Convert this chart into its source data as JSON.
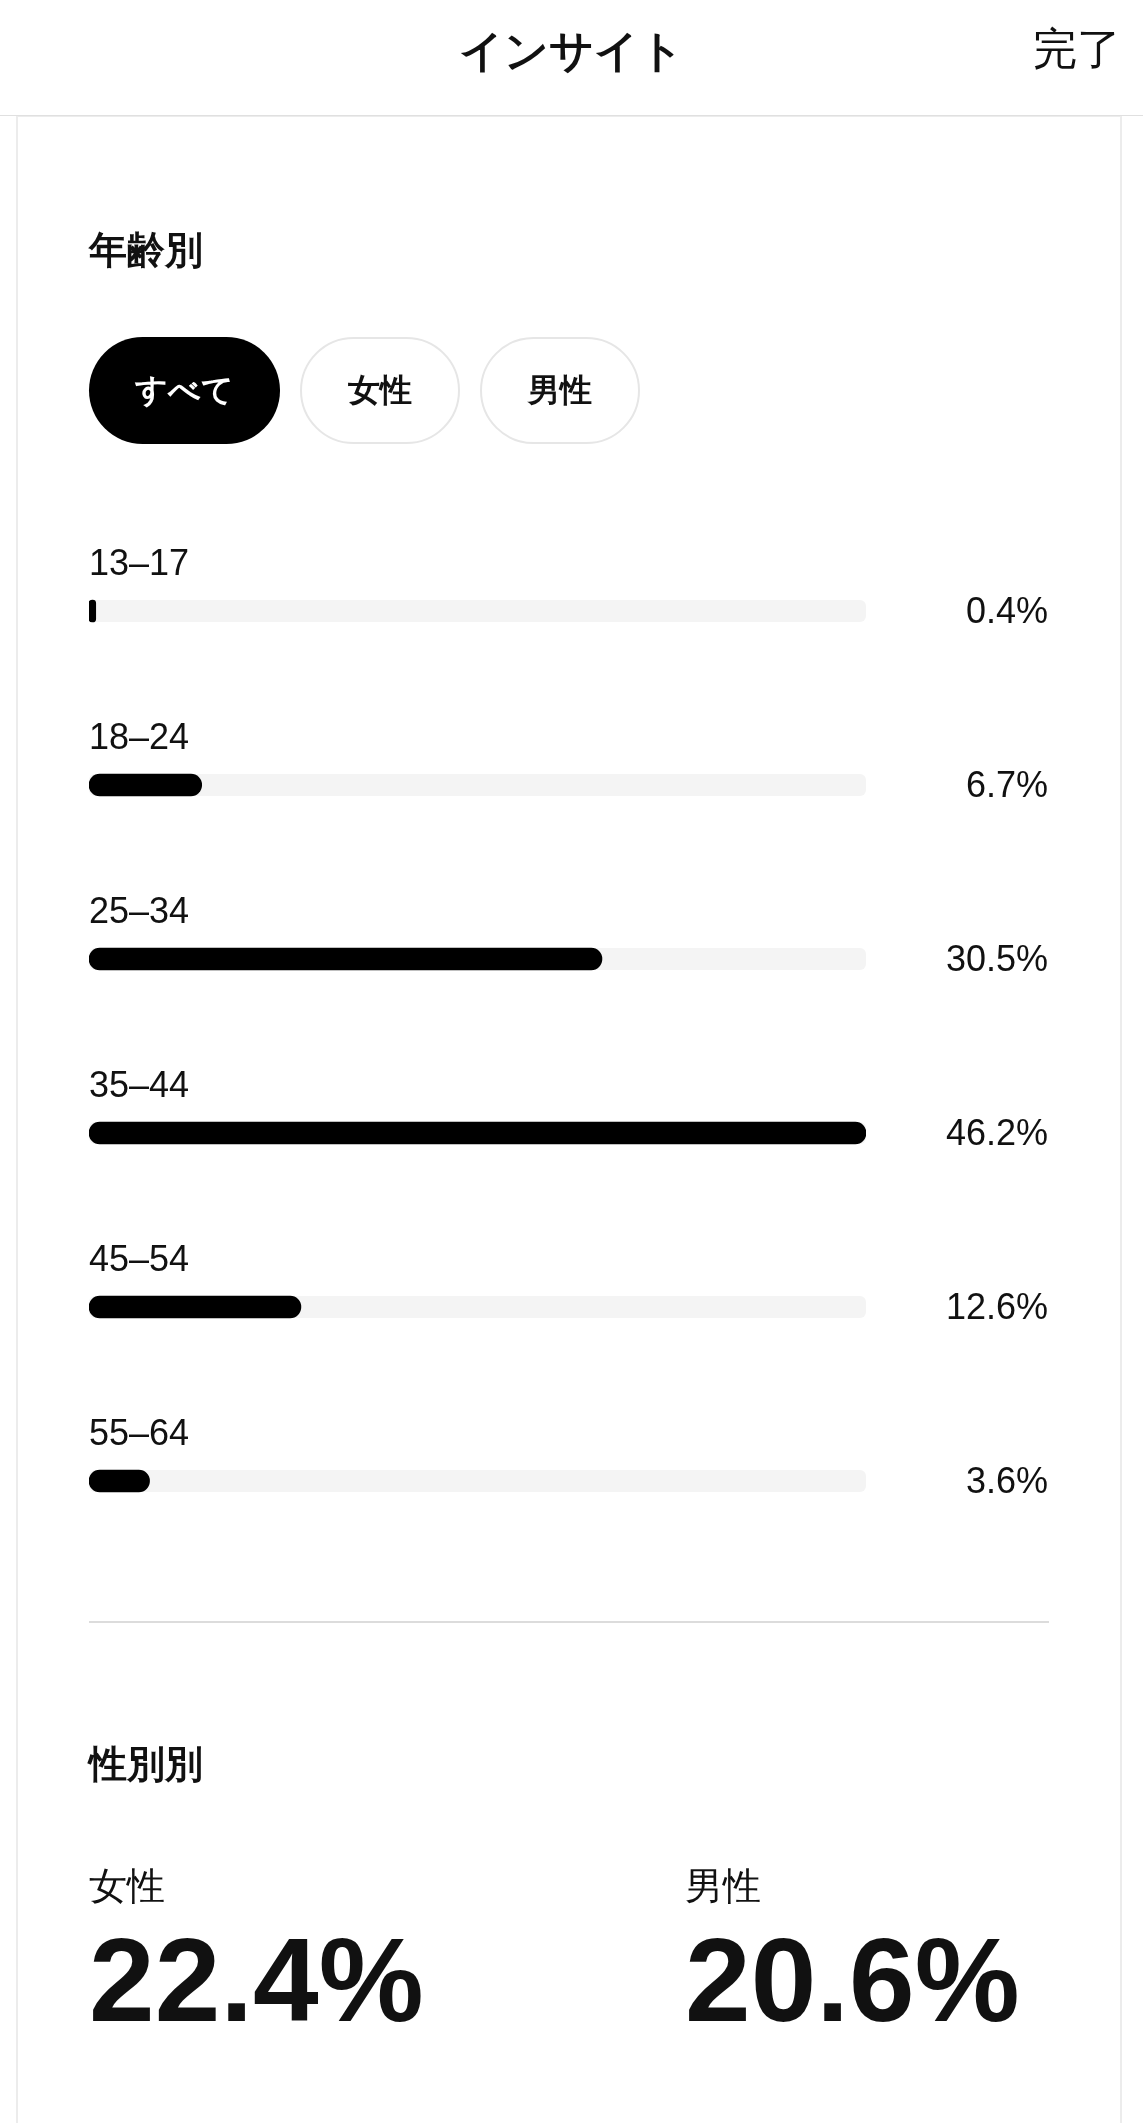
{
  "chart_data": [
    {
      "type": "bar",
      "orientation": "horizontal",
      "title": "年齢別",
      "annotations": [
        "インサイト",
        "完了",
        "すべて",
        "女性",
        "男性"
      ],
      "categories": [
        "13–17",
        "18–24",
        "25–34",
        "35–44",
        "45–54",
        "55–64"
      ],
      "values": [
        0.4,
        6.7,
        30.5,
        46.2,
        12.6,
        3.6
      ],
      "value_labels": [
        "0.4%",
        "6.7%",
        "30.5%",
        "46.2%",
        "12.6%",
        "3.6%"
      ],
      "color": "#000000",
      "legend": false
    },
    {
      "type": "other",
      "title": "性別別",
      "categories": [
        "女性",
        "男性"
      ],
      "values": [
        22.4,
        20.6
      ],
      "value_labels": [
        "22.4%",
        "20.6%"
      ]
    }
  ]
}
